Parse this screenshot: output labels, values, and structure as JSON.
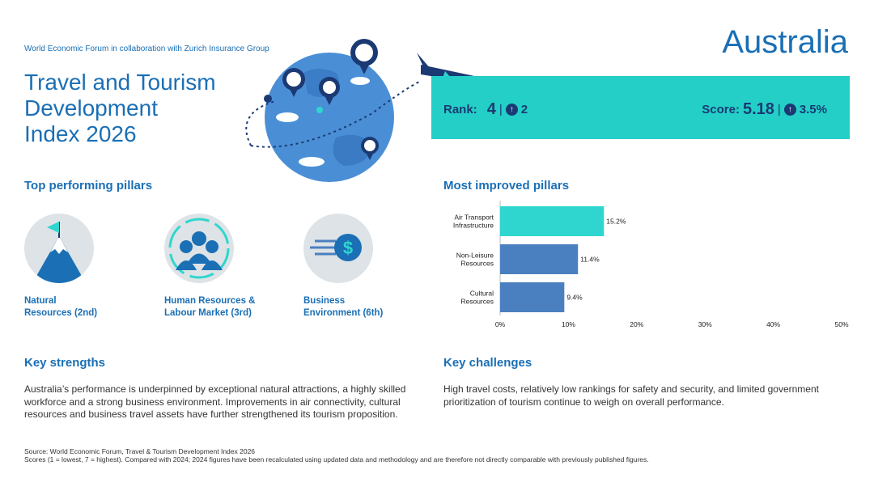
{
  "header": {
    "collab": "World Economic Forum in collaboration with Zurich Insurance Group",
    "title_lines": [
      "Travel and Tourism",
      "Development",
      "Index 2026"
    ],
    "country": "Australia"
  },
  "rank_box": {
    "rank_label": "Rank:",
    "rank_value": "4",
    "rank_change": "2",
    "score_label": "Score:",
    "score_value": "5.18",
    "score_change": "3.5%",
    "separator": "|"
  },
  "top_pillars": {
    "heading": "Top performing pillars",
    "items": [
      {
        "line1": "Natural",
        "line2": "Resources (2nd)",
        "icon": "mountain-flag-icon"
      },
      {
        "line1": "Human Resources &",
        "line2": "Labour Market (3rd)",
        "icon": "people-group-icon"
      },
      {
        "line1": "Business",
        "line2": "Environment (6th)",
        "icon": "dollar-coin-icon"
      }
    ]
  },
  "improved": {
    "heading": "Most improved pillars"
  },
  "strengths": {
    "heading": "Key strengths",
    "text": "Australia’s performance is underpinned by exceptional natural attractions, a highly skilled workforce and a strong business environment. Improvements in air connectivity, cultural resources and business travel assets have further strengthened its tourism proposition."
  },
  "challenges": {
    "heading": "Key challenges",
    "text": "High travel costs, relatively low rankings for safety and security, and limited government prioritization of tourism continue to weigh on overall performance."
  },
  "footer": {
    "line1": "Source: World Economic Forum, Travel & Tourism Development Index 2026",
    "line2": "Scores (1 = lowest, 7 = highest). Compared with 2024; 2024 figures have been recalculated using updated data and methodology and are therefore not directly comparable with previously published figures."
  },
  "colors": {
    "brand_blue": "#1a6fb5",
    "navy": "#1b3a73",
    "teal": "#23cfc7",
    "bar_teal": "#2fd6cf",
    "bar_blue": "#4a80c0"
  },
  "chart_data": {
    "type": "bar",
    "orientation": "horizontal",
    "categories": [
      [
        "Air Transport",
        "Infrastructure"
      ],
      [
        "Non-Leisure",
        "Resources"
      ],
      [
        "Cultural",
        "Resources"
      ]
    ],
    "values": [
      15.2,
      11.4,
      9.4
    ],
    "value_labels": [
      "15.2%",
      "11.4%",
      "9.4%"
    ],
    "bar_colors": [
      "#2fd6cf",
      "#4a80c0",
      "#4a80c0"
    ],
    "xlim": [
      0,
      50
    ],
    "xticks": [
      "0%",
      "10%",
      "20%",
      "30%",
      "40%",
      "50%"
    ],
    "xtick_values": [
      0,
      10,
      20,
      30,
      40,
      50
    ],
    "title": "",
    "xlabel": "",
    "ylabel": "",
    "grid": false
  }
}
